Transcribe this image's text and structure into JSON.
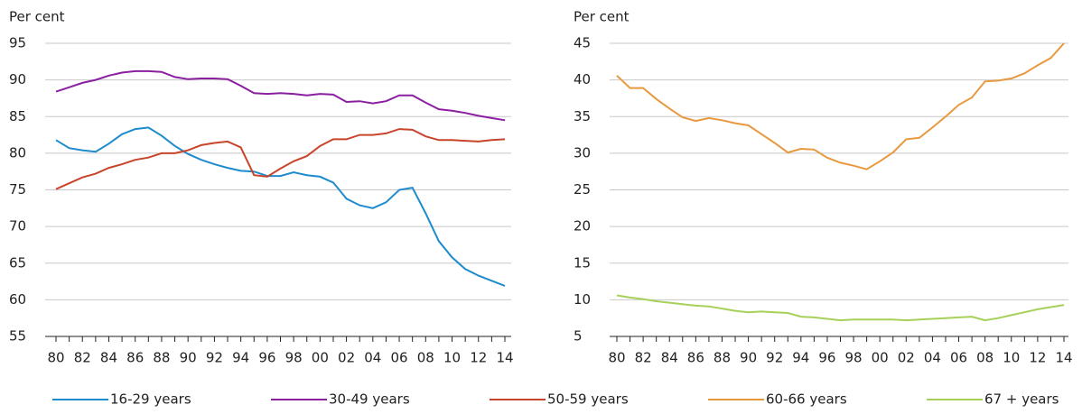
{
  "chart_data": [
    {
      "type": "line",
      "ylabel": "Per cent",
      "categories": [
        "80",
        null,
        "82",
        null,
        "84",
        null,
        "86",
        null,
        "88",
        null,
        "90",
        null,
        "92",
        null,
        "94",
        null,
        "96",
        null,
        "98",
        null,
        "00",
        null,
        "02",
        null,
        "04",
        null,
        "06",
        null,
        "08",
        null,
        "10",
        null,
        "12",
        null,
        "14"
      ],
      "ylim": [
        55,
        95
      ],
      "yticks": [
        55,
        60,
        65,
        70,
        75,
        80,
        85,
        90,
        95
      ],
      "grid": true,
      "series": [
        {
          "name": "16-29 years",
          "color": "#1e8bcc",
          "values": [
            81.8,
            80.7,
            80.4,
            80.2,
            81.3,
            82.6,
            83.3,
            83.5,
            82.4,
            81.0,
            79.9,
            79.1,
            78.5,
            78.0,
            77.6,
            77.5,
            76.9,
            76.9,
            77.4,
            77.0,
            76.8,
            76.0,
            73.8,
            72.9,
            72.5,
            73.3,
            75.0,
            75.3,
            71.8,
            68.0,
            65.8,
            64.2,
            63.3,
            62.6,
            61.9
          ]
        },
        {
          "name": "30-49 years",
          "color": "#8a1fa0",
          "values": [
            88.4,
            89.0,
            89.6,
            90.0,
            90.6,
            91.0,
            91.2,
            91.2,
            91.1,
            90.4,
            90.1,
            90.2,
            90.2,
            90.1,
            89.2,
            88.2,
            88.1,
            88.2,
            88.1,
            87.9,
            88.1,
            88.0,
            87.0,
            87.1,
            86.8,
            87.1,
            87.9,
            87.9,
            86.9,
            86.0,
            85.8,
            85.5,
            85.1,
            84.8,
            84.5
          ]
        },
        {
          "name": "50-59 years",
          "color": "#c8452b",
          "values": [
            75.1,
            75.9,
            76.7,
            77.2,
            78.0,
            78.5,
            79.1,
            79.4,
            80.0,
            80.0,
            80.4,
            81.1,
            81.4,
            81.6,
            80.8,
            77.0,
            76.8,
            77.9,
            78.9,
            79.6,
            81.0,
            81.9,
            81.9,
            82.5,
            82.5,
            82.7,
            83.3,
            83.2,
            82.3,
            81.8,
            81.8,
            81.7,
            81.6,
            81.8,
            81.9
          ]
        }
      ]
    },
    {
      "type": "line",
      "ylabel": "Per cent",
      "categories": [
        "80",
        null,
        "82",
        null,
        "84",
        null,
        "86",
        null,
        "88",
        null,
        "90",
        null,
        "92",
        null,
        "94",
        null,
        "96",
        null,
        "98",
        null,
        "00",
        null,
        "02",
        null,
        "04",
        null,
        "06",
        null,
        "08",
        null,
        "10",
        null,
        "12",
        null,
        "14"
      ],
      "ylim": [
        5,
        45
      ],
      "yticks": [
        5,
        10,
        15,
        20,
        25,
        30,
        35,
        40,
        45
      ],
      "grid": true,
      "series": [
        {
          "name": "60-66 years",
          "color": "#e8993d",
          "values": [
            40.6,
            38.9,
            38.9,
            37.4,
            36.1,
            34.9,
            34.4,
            34.8,
            34.5,
            34.1,
            33.8,
            32.6,
            31.4,
            30.1,
            30.6,
            30.5,
            29.4,
            28.7,
            28.3,
            27.8,
            28.9,
            30.1,
            31.9,
            32.1,
            33.5,
            35.0,
            36.6,
            37.6,
            39.8,
            39.9,
            40.2,
            40.9,
            42.0,
            43.0,
            45.0
          ]
        },
        {
          "name": "67 + years",
          "color": "#a6d05a",
          "values": [
            10.6,
            10.3,
            10.1,
            9.8,
            9.6,
            9.4,
            9.2,
            9.1,
            8.8,
            8.5,
            8.3,
            8.4,
            8.3,
            8.2,
            7.7,
            7.6,
            7.4,
            7.2,
            7.3,
            7.3,
            7.3,
            7.3,
            7.2,
            7.3,
            7.4,
            7.5,
            7.6,
            7.7,
            7.2,
            7.5,
            7.9,
            8.3,
            8.7,
            9.0,
            9.3
          ]
        }
      ]
    }
  ]
}
